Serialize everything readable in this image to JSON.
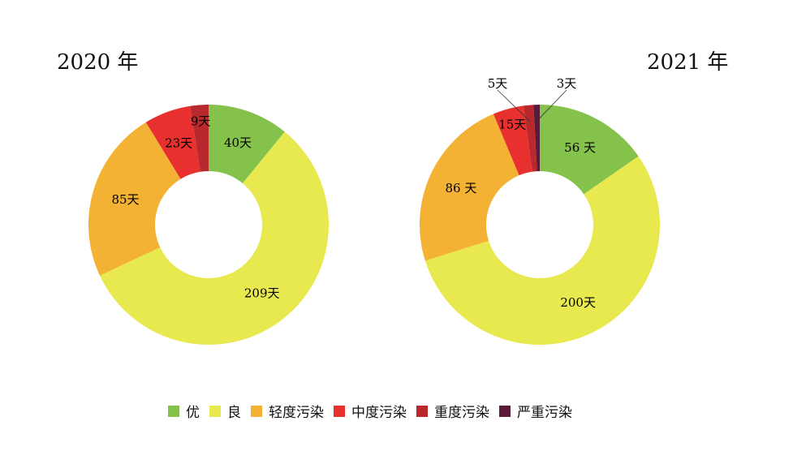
{
  "chart_data": [
    {
      "type": "pie",
      "variant": "donut",
      "title": "2020 年",
      "categories": [
        "优",
        "良",
        "轻度污染",
        "中度污染",
        "重度污染",
        "严重污染"
      ],
      "values": [
        40,
        209,
        85,
        23,
        9,
        0
      ],
      "labels": [
        "40天",
        "209天",
        "85天",
        "23天",
        "9天",
        ""
      ]
    },
    {
      "type": "pie",
      "variant": "donut",
      "title": "2021 年",
      "categories": [
        "优",
        "良",
        "轻度污染",
        "中度污染",
        "重度污染",
        "严重污染"
      ],
      "values": [
        56,
        200,
        86,
        15,
        5,
        3
      ],
      "labels": [
        "56 天",
        "200天",
        "86 天",
        "15天",
        "5天",
        "3天"
      ]
    }
  ],
  "legend": {
    "placement": "bottom",
    "items": [
      "优",
      "良",
      "轻度污染",
      "中度污染",
      "重度污染",
      "严重污染"
    ]
  },
  "colors": [
    "#84c24b",
    "#e8e84f",
    "#f4b234",
    "#e8302f",
    "#b8282c",
    "#5a1a3a"
  ]
}
